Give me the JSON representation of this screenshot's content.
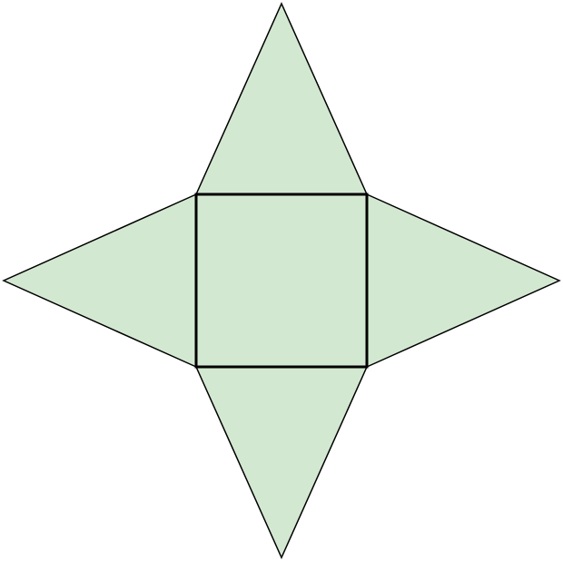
{
  "diagram": {
    "colors": {
      "fill": "#d3e8d1",
      "stroke": "#000000",
      "background": "#ffffff"
    },
    "shapes": [
      {
        "name": "top-triangle",
        "kind": "triangle"
      },
      {
        "name": "left-triangle",
        "kind": "triangle"
      },
      {
        "name": "right-triangle",
        "kind": "triangle"
      },
      {
        "name": "bottom-triangle",
        "kind": "triangle"
      },
      {
        "name": "center-square",
        "kind": "square"
      }
    ]
  }
}
